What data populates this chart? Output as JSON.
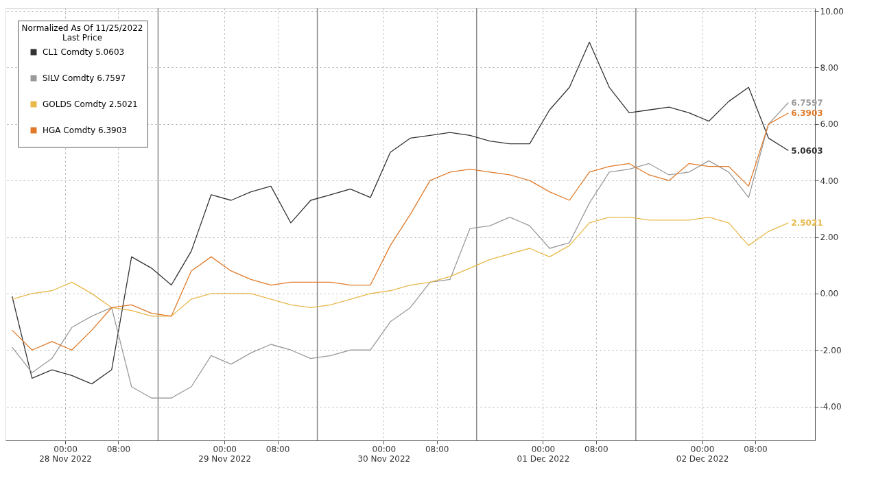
{
  "chart_data": {
    "type": "line",
    "legend_title": "Normalized As Of 11/25/2022\nLast Price",
    "x": [
      "2022-11-27T16:00",
      "2022-11-27T19:00",
      "2022-11-27T22:00",
      "2022-11-28T01:00",
      "2022-11-28T04:00",
      "2022-11-28T07:00",
      "2022-11-28T10:00",
      "2022-11-28T13:00",
      "2022-11-28T16:00",
      "2022-11-28T19:00",
      "2022-11-28T22:00",
      "2022-11-29T01:00",
      "2022-11-29T04:00",
      "2022-11-29T07:00",
      "2022-11-29T10:00",
      "2022-11-29T13:00",
      "2022-11-29T16:00",
      "2022-11-29T19:00",
      "2022-11-29T22:00",
      "2022-11-30T01:00",
      "2022-11-30T04:00",
      "2022-11-30T07:00",
      "2022-11-30T10:00",
      "2022-11-30T13:00",
      "2022-11-30T16:00",
      "2022-11-30T19:00",
      "2022-11-30T22:00",
      "2022-12-01T01:00",
      "2022-12-01T04:00",
      "2022-12-01T07:00",
      "2022-12-01T10:00",
      "2022-12-01T13:00",
      "2022-12-01T16:00",
      "2022-12-01T19:00",
      "2022-12-01T22:00",
      "2022-12-02T01:00",
      "2022-12-02T04:00",
      "2022-12-02T07:00",
      "2022-12-02T10:00",
      "2022-12-02T13:00"
    ],
    "series": [
      {
        "name": "CL1 Comdty 5.0603",
        "color": "#333333",
        "values": [
          -0.1,
          -3.0,
          -2.7,
          -2.9,
          -3.2,
          -2.7,
          1.3,
          0.9,
          0.3,
          1.5,
          3.5,
          3.3,
          3.6,
          3.8,
          2.5,
          3.3,
          3.5,
          3.7,
          3.4,
          5.0,
          5.5,
          5.6,
          5.7,
          5.6,
          5.4,
          5.3,
          5.3,
          6.5,
          7.3,
          8.9,
          7.3,
          6.4,
          6.5,
          6.6,
          6.4,
          6.1,
          6.8,
          7.3,
          5.5,
          5.0603
        ]
      },
      {
        "name": "SILV Comdty 6.7597",
        "color": "#9a9a9a",
        "values": [
          -1.9,
          -2.8,
          -2.3,
          -1.2,
          -0.8,
          -0.5,
          -3.3,
          -3.7,
          -3.7,
          -3.3,
          -2.2,
          -2.5,
          -2.1,
          -1.8,
          -2.0,
          -2.3,
          -2.2,
          -2.0,
          -2.0,
          -1.0,
          -0.5,
          0.4,
          0.5,
          2.3,
          2.4,
          2.7,
          2.4,
          1.6,
          1.8,
          3.2,
          4.3,
          4.4,
          4.6,
          4.2,
          4.3,
          4.7,
          4.3,
          3.4,
          6.0,
          6.7597
        ]
      },
      {
        "name": "GOLDS Comdty 2.5021",
        "color": "#e8b84a",
        "values": [
          -0.2,
          0.0,
          0.1,
          0.4,
          0.0,
          -0.5,
          -0.6,
          -0.8,
          -0.8,
          -0.2,
          0.0,
          0.0,
          0.0,
          -0.2,
          -0.4,
          -0.5,
          -0.4,
          -0.2,
          0.0,
          0.1,
          0.3,
          0.4,
          0.6,
          0.9,
          1.2,
          1.4,
          1.6,
          1.3,
          1.7,
          2.5,
          2.7,
          2.7,
          2.6,
          2.6,
          2.6,
          2.7,
          2.5,
          1.7,
          2.2,
          2.5021
        ]
      },
      {
        "name": "HGA Comdty 6.3903",
        "color": "#e07a2a",
        "values": [
          -1.3,
          -2.0,
          -1.7,
          -2.0,
          -1.3,
          -0.5,
          -0.4,
          -0.7,
          -0.8,
          0.8,
          1.3,
          0.8,
          0.5,
          0.3,
          0.4,
          0.4,
          0.4,
          0.3,
          0.3,
          1.7,
          2.8,
          4.0,
          4.3,
          4.4,
          4.3,
          4.2,
          4.0,
          3.6,
          3.3,
          4.3,
          4.5,
          4.6,
          4.2,
          4.0,
          4.6,
          4.5,
          4.5,
          3.8,
          6.0,
          6.3903
        ]
      }
    ],
    "xlim": [
      "2022-11-27T15:00",
      "2022-12-02T17:00"
    ],
    "xticks": [
      {
        "value": "2022-11-28T00:00",
        "label": "00:00\n28 Nov 2022"
      },
      {
        "value": "2022-11-28T08:00",
        "label": "08:00"
      },
      {
        "value": "2022-11-29T00:00",
        "label": "00:00\n29 Nov 2022"
      },
      {
        "value": "2022-11-29T08:00",
        "label": "08:00"
      },
      {
        "value": "2022-11-30T00:00",
        "label": "00:00\n30 Nov 2022"
      },
      {
        "value": "2022-11-30T08:00",
        "label": "08:00"
      },
      {
        "value": "2022-12-01T00:00",
        "label": "00:00\n01 Dec 2022"
      },
      {
        "value": "2022-12-01T08:00",
        "label": "08:00"
      },
      {
        "value": "2022-12-02T00:00",
        "label": "00:00\n02 Dec 2022"
      },
      {
        "value": "2022-12-02T08:00",
        "label": "08:00"
      }
    ],
    "ylim": [
      -5.2,
      10.1
    ],
    "yticks": [
      {
        "value": -4,
        "label": "-4.00"
      },
      {
        "value": -2,
        "label": "-2.00"
      },
      {
        "value": 0,
        "label": "0.00"
      },
      {
        "value": 2,
        "label": "2.00"
      },
      {
        "value": 4,
        "label": "4.00"
      },
      {
        "value": 6,
        "label": "6.00"
      },
      {
        "value": 8,
        "label": "8.00"
      },
      {
        "value": 10,
        "label": "10.00"
      }
    ],
    "ref_lines": [
      {
        "axis": "x",
        "value": "2022-11-28T14:00",
        "color": "#888888"
      },
      {
        "axis": "x",
        "value": "2022-11-29T14:00",
        "color": "#888888"
      },
      {
        "axis": "x",
        "value": "2022-11-30T14:00",
        "color": "#888888"
      },
      {
        "axis": "x",
        "value": "2022-12-01T14:00",
        "color": "#888888"
      }
    ],
    "annotations": [
      {
        "text": "6.7597",
        "x": "2022-12-02T13:00",
        "y": 6.7597
      },
      {
        "text": "6.3903",
        "x": "2022-12-02T13:00",
        "y": 6.3903
      },
      {
        "text": "5.0603",
        "x": "2022-12-02T13:00",
        "y": 5.0603
      },
      {
        "text": "2.5021",
        "x": "2022-12-02T13:00",
        "y": 2.5021
      }
    ],
    "grid": true,
    "legend": "top left",
    "line_style": "solid"
  }
}
